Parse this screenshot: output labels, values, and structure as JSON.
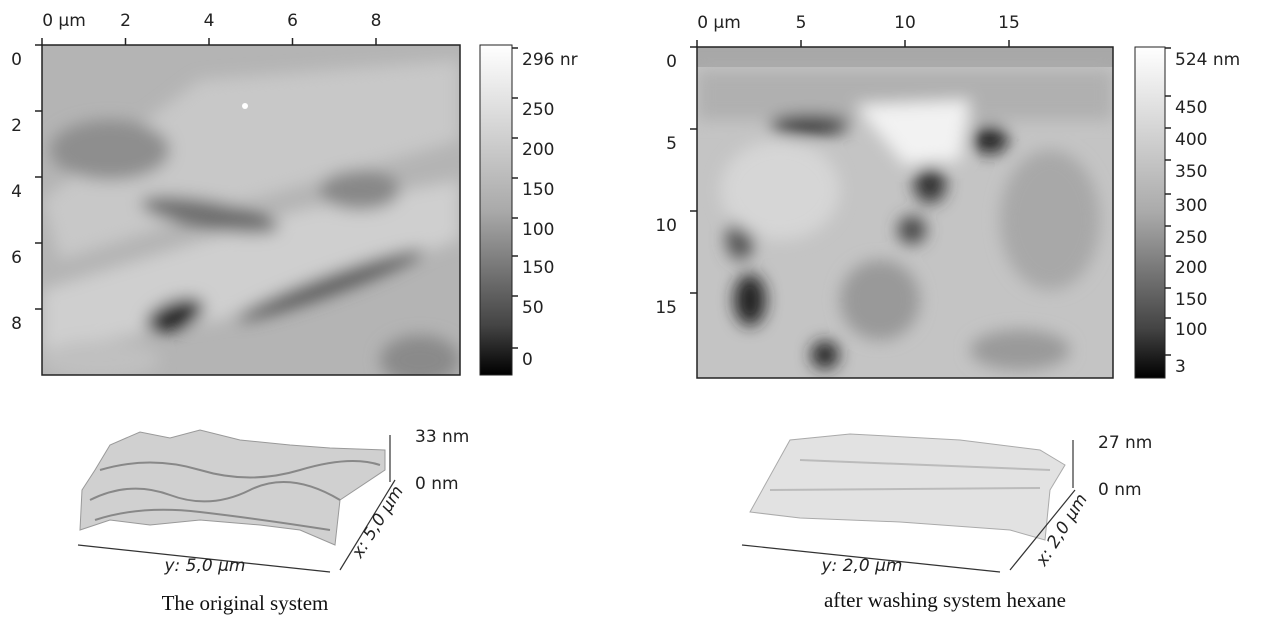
{
  "panels": [
    {
      "x_ticks": [
        "0 µm",
        "2",
        "4",
        "6",
        "8"
      ],
      "y_ticks": [
        "0",
        "2",
        "4",
        "6",
        "8"
      ],
      "colorbar_ticks": [
        "296 nr",
        "250",
        "200",
        "150",
        "100",
        "150",
        "50",
        "0"
      ],
      "surface_top": "33 nm",
      "surface_bottom": "0 nm",
      "surface_y": "y: 5,0 µm",
      "surface_x": "x: 5,0 µm",
      "caption": "The original system"
    },
    {
      "x_ticks": [
        "0 µm",
        "5",
        "10",
        "15"
      ],
      "y_ticks": [
        "0",
        "5",
        "10",
        "15"
      ],
      "colorbar_ticks": [
        "524 nm",
        "450",
        "400",
        "350",
        "300",
        "250",
        "200",
        "150",
        "100",
        "3"
      ],
      "surface_top": "27 nm",
      "surface_bottom": "0 nm",
      "surface_y": "y: 2,0 µm",
      "surface_x": "x: 2,0 µm",
      "caption": "after washing system hexane"
    }
  ]
}
